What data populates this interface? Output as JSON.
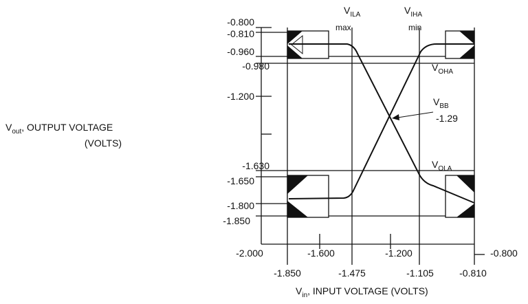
{
  "diagram": {
    "y_axis": {
      "symbol": "V",
      "subscript": "out",
      "label": ", OUTPUT VOLTAGE",
      "unit": "(VOLTS)",
      "ticks": [
        "-0.800",
        "-0.810",
        "-0.960",
        "-0.980",
        "-1.200",
        "-1.630",
        "-1.650",
        "-1.800",
        "-1.850"
      ]
    },
    "x_axis": {
      "symbol": "V",
      "subscript": "in",
      "label": ", INPUT VOLTAGE (VOLTS)",
      "ticks_upper": [
        "-2.000",
        "-1.600",
        "-1.200",
        "-0.800"
      ],
      "ticks_lower": [
        "-1.850",
        "-1.475",
        "-1.105",
        "-0.810"
      ]
    },
    "annotations": {
      "vila": {
        "symbol": "V",
        "subscript": "ILA",
        "note": "max"
      },
      "viha": {
        "symbol": "V",
        "subscript": "IHA",
        "note": "min"
      },
      "voha": {
        "symbol": "V",
        "subscript": "OHA"
      },
      "vola": {
        "symbol": "V",
        "subscript": "OLA"
      },
      "vbb": {
        "symbol": "V",
        "subscript": "BB",
        "note": "-1.29"
      }
    }
  }
}
